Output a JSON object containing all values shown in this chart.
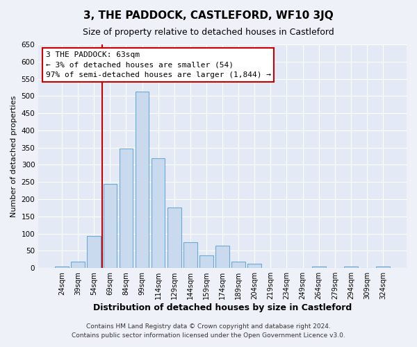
{
  "title": "3, THE PADDOCK, CASTLEFORD, WF10 3JQ",
  "subtitle": "Size of property relative to detached houses in Castleford",
  "xlabel": "Distribution of detached houses by size in Castleford",
  "ylabel": "Number of detached properties",
  "bar_labels": [
    "24sqm",
    "39sqm",
    "54sqm",
    "69sqm",
    "84sqm",
    "99sqm",
    "114sqm",
    "129sqm",
    "144sqm",
    "159sqm",
    "174sqm",
    "189sqm",
    "204sqm",
    "219sqm",
    "234sqm",
    "249sqm",
    "264sqm",
    "279sqm",
    "294sqm",
    "309sqm",
    "324sqm"
  ],
  "bar_values": [
    5,
    18,
    93,
    245,
    348,
    512,
    320,
    175,
    75,
    37,
    65,
    18,
    13,
    0,
    0,
    0,
    5,
    0,
    5,
    0,
    5
  ],
  "bar_color": "#c9d9ee",
  "bar_edge_color": "#6aaad4",
  "vline_color": "#cc0000",
  "vline_xindex": 2.5,
  "annotation_title": "3 THE PADDOCK: 63sqm",
  "annotation_line1": "← 3% of detached houses are smaller (54)",
  "annotation_line2": "97% of semi-detached houses are larger (1,844) →",
  "annotation_box_edge": "#cc0000",
  "ylim": [
    0,
    650
  ],
  "yticks": [
    0,
    50,
    100,
    150,
    200,
    250,
    300,
    350,
    400,
    450,
    500,
    550,
    600,
    650
  ],
  "footnote1": "Contains HM Land Registry data © Crown copyright and database right 2024.",
  "footnote2": "Contains public sector information licensed under the Open Government Licence v3.0.",
  "fig_facecolor": "#eef2f8",
  "plot_facecolor": "#e4eaf5"
}
